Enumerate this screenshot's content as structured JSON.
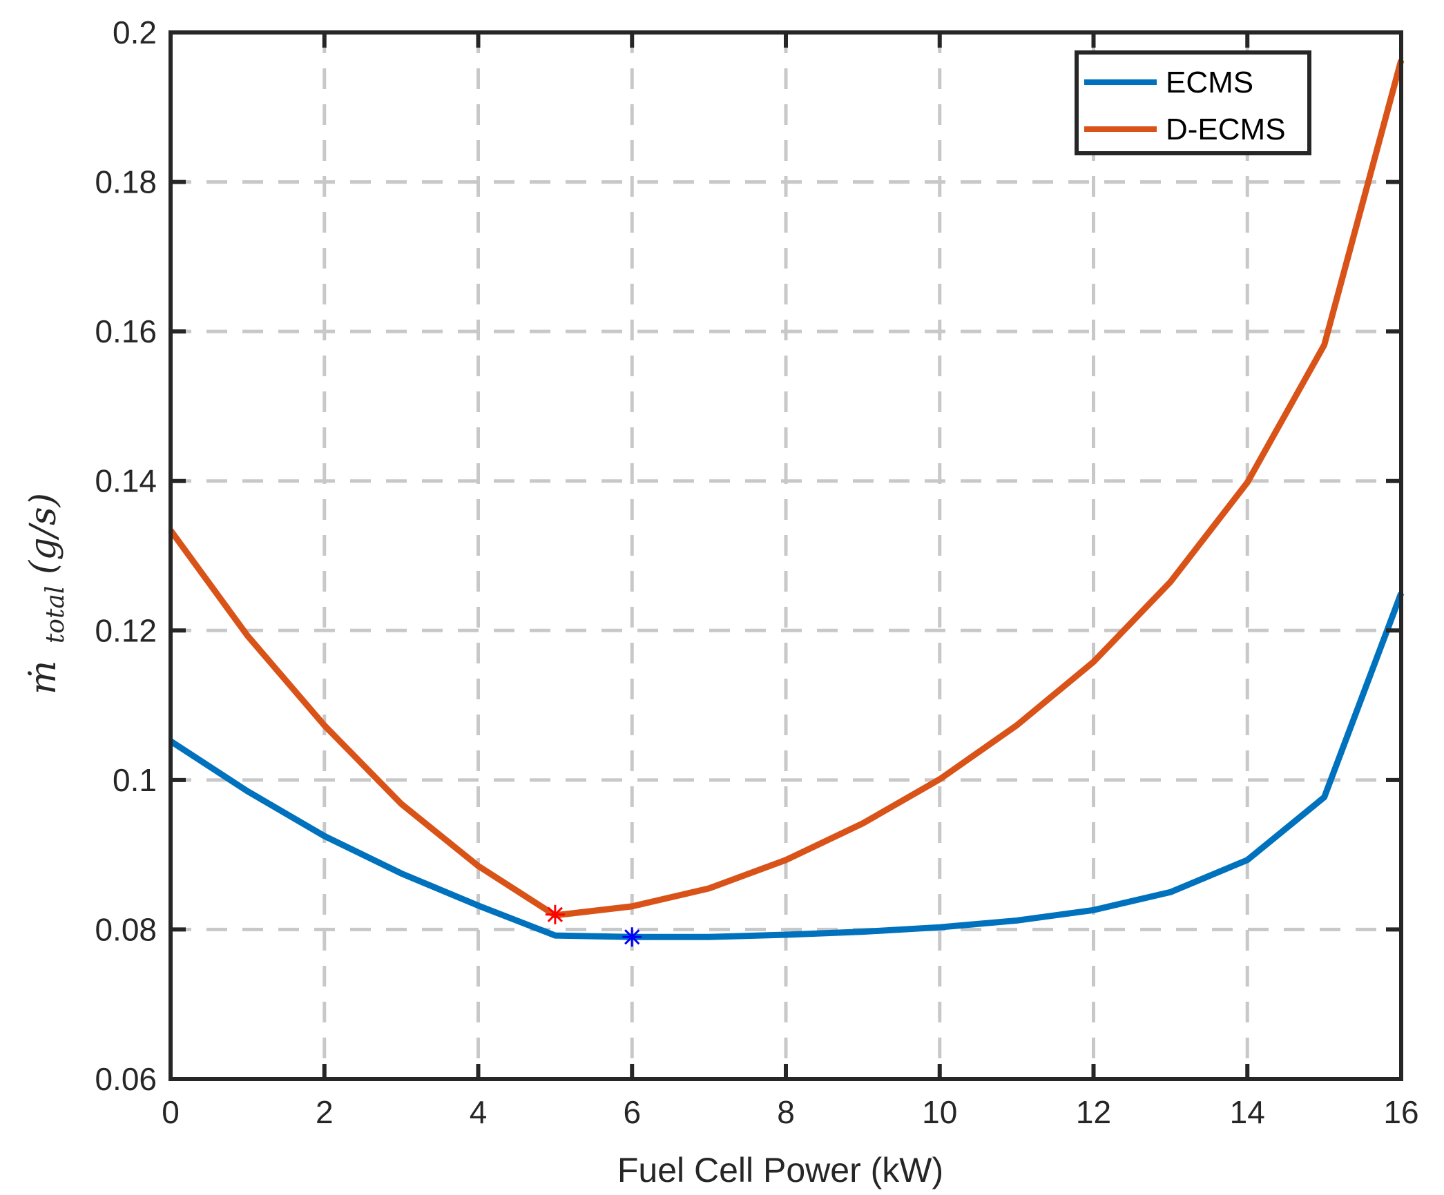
{
  "chart_data": {
    "type": "line",
    "title": "",
    "xlabel": "Fuel Cell Power (kW)",
    "ylabel": {
      "main": "ṁ",
      "subscript": "total",
      "unit": "(g/s)"
    },
    "xlim": [
      0,
      16
    ],
    "ylim": [
      0.06,
      0.2
    ],
    "xticks": [
      0,
      2,
      4,
      6,
      8,
      10,
      12,
      14,
      16
    ],
    "xtick_labels": [
      "0",
      "2",
      "4",
      "6",
      "8",
      "10",
      "12",
      "14",
      "16"
    ],
    "yticks": [
      0.06,
      0.08,
      0.1,
      0.12,
      0.14,
      0.16,
      0.18,
      0.2
    ],
    "ytick_labels": [
      "0.06",
      "0.08",
      "0.1",
      "0.12",
      "0.14",
      "0.16",
      "0.18",
      "0.2"
    ],
    "grid": true,
    "legend_position": "top-right",
    "x": [
      0,
      1,
      2,
      3,
      4,
      5,
      6,
      7,
      8,
      9,
      10,
      11,
      12,
      13,
      14,
      15,
      16
    ],
    "series": [
      {
        "name": "ECMS",
        "color": "#0072BD",
        "values": [
          0.1052,
          0.0985,
          0.0925,
          0.0875,
          0.0832,
          0.0792,
          0.079,
          0.079,
          0.0793,
          0.0797,
          0.0803,
          0.0812,
          0.0826,
          0.085,
          0.0893,
          0.0977,
          0.125
        ]
      },
      {
        "name": "D-ECMS",
        "color": "#D95319",
        "values": [
          0.1334,
          0.1193,
          0.1073,
          0.0968,
          0.0885,
          0.0819,
          0.0831,
          0.0855,
          0.0893,
          0.0942,
          0.1001,
          0.1073,
          0.1158,
          0.1265,
          0.1398,
          0.1582,
          0.1963
        ]
      }
    ],
    "markers": [
      {
        "series": "D-ECMS",
        "x": 5,
        "y": 0.082,
        "symbol": "asterisk",
        "color": "#FF0000"
      },
      {
        "series": "ECMS",
        "x": 6,
        "y": 0.079,
        "symbol": "asterisk",
        "color": "#0000FF"
      }
    ]
  }
}
